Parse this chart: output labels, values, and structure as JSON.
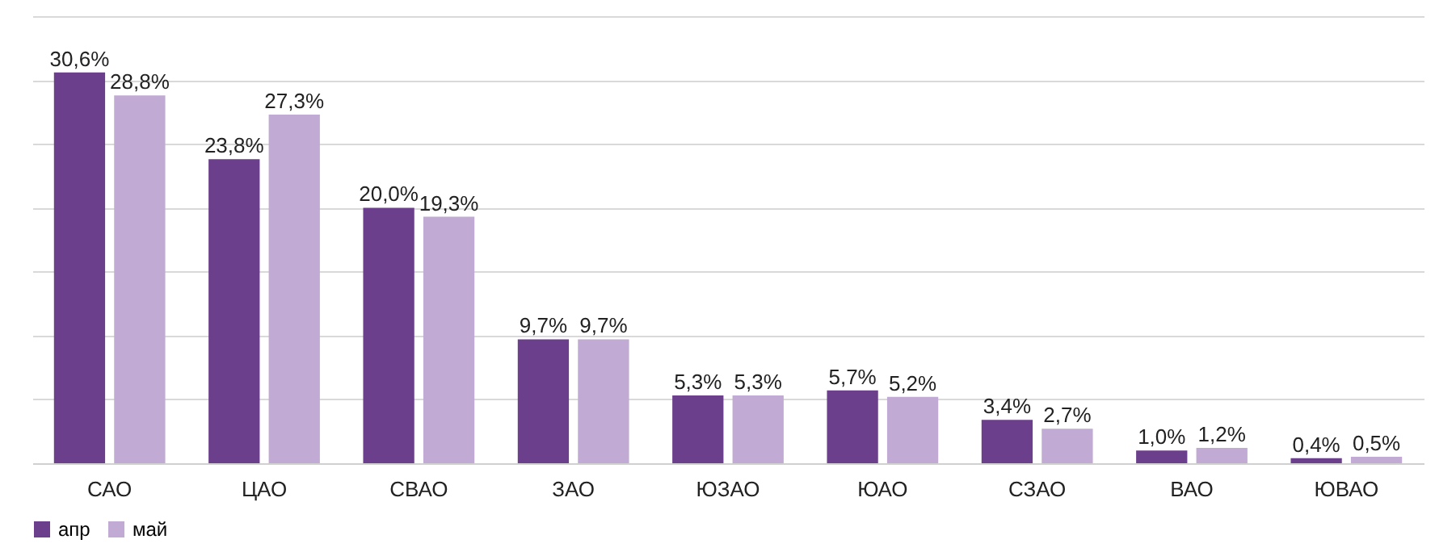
{
  "chart_data": {
    "type": "bar",
    "categories": [
      "САО",
      "ЦАО",
      "СВАО",
      "ЗАО",
      "ЮЗАО",
      "ЮАО",
      "СЗАО",
      "ВАО",
      "ЮВАО"
    ],
    "series": [
      {
        "name": "апр",
        "color": "#6b3f8c",
        "values": [
          30.6,
          23.8,
          20.0,
          9.7,
          5.3,
          5.7,
          3.4,
          1.0,
          0.4
        ],
        "value_labels": [
          "30,6%",
          "23,8%",
          "20,0%",
          "9,7%",
          "5,3%",
          "5,7%",
          "3,4%",
          "1,0%",
          "0,4%"
        ]
      },
      {
        "name": "май",
        "color": "#c1aad3",
        "values": [
          28.8,
          27.3,
          19.3,
          9.7,
          5.3,
          5.2,
          2.7,
          1.2,
          0.5
        ],
        "value_labels": [
          "28,8%",
          "27,3%",
          "19,3%",
          "9,7%",
          "5,3%",
          "5,2%",
          "2,7%",
          "1,2%",
          "0,5%"
        ]
      }
    ],
    "ylim": [
      0,
      35
    ],
    "yticks": [
      {
        "value": 0,
        "label": null
      },
      {
        "value": 5,
        "label": null
      },
      {
        "value": 10,
        "label": null
      },
      {
        "value": 15,
        "label": null
      },
      {
        "value": 20,
        "label": null
      },
      {
        "value": 25,
        "label": null
      },
      {
        "value": 30,
        "label": null
      },
      {
        "value": 35,
        "label": null
      }
    ],
    "tick_labels": "x",
    "grid": "y",
    "legend": "bottom"
  }
}
